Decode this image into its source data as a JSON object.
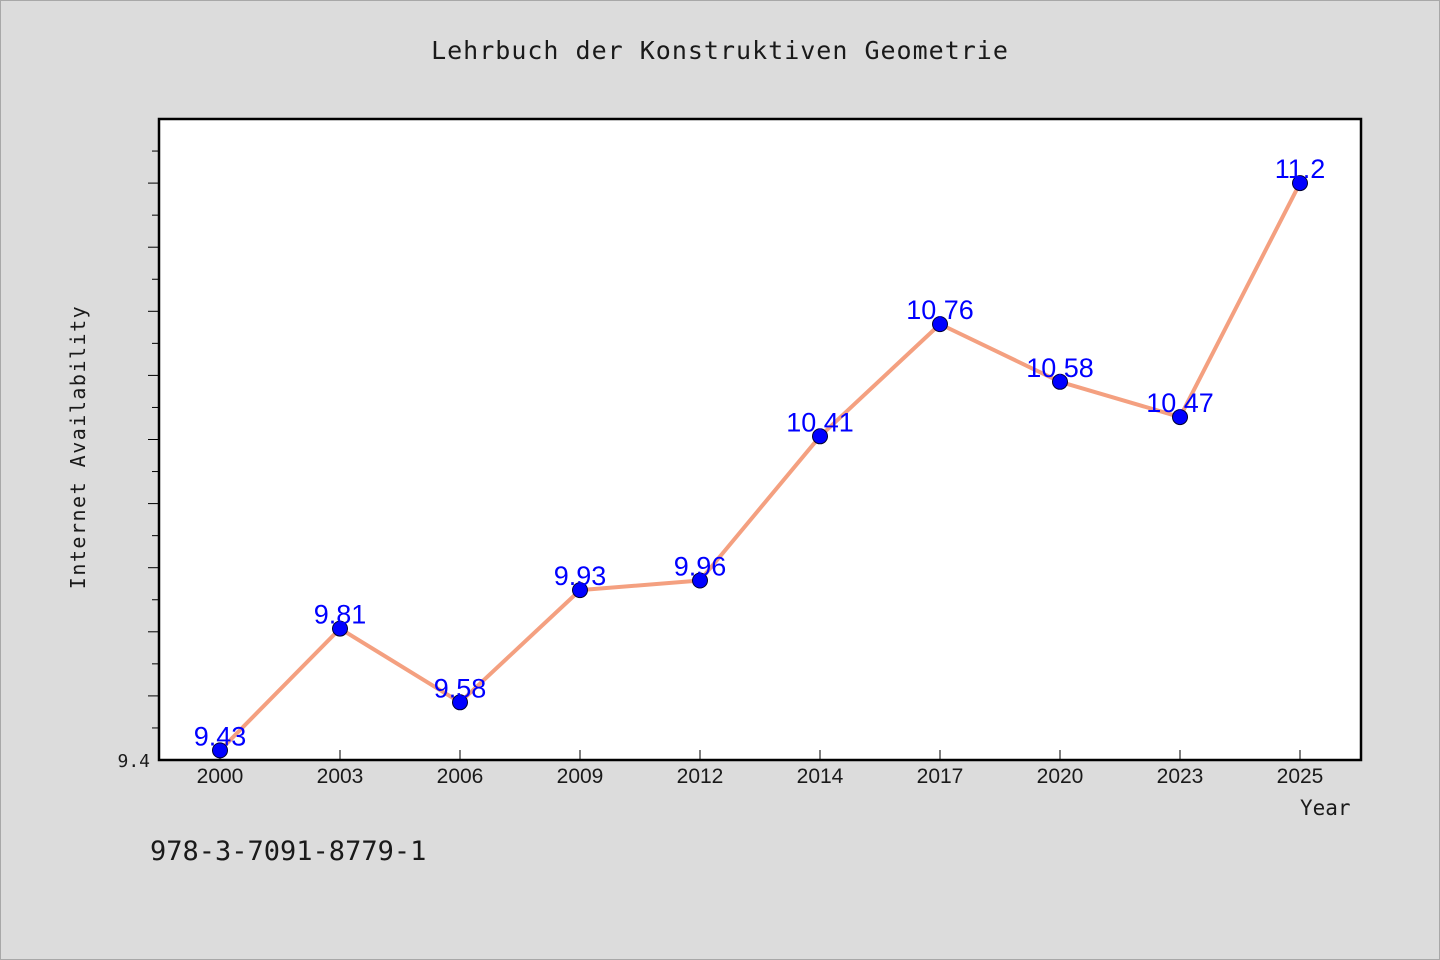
{
  "title": "Lehrbuch der Konstruktiven Geometrie",
  "footer_text": "978-3-7091-8779-1",
  "colors": {
    "background": "#dcdcdc",
    "plot_background": "#ffffff",
    "line": "#f4a080",
    "marker": "#0000ff",
    "data_label": "#0000ff"
  },
  "chart_data": {
    "type": "line",
    "xlabel": "Year",
    "ylabel": "Internet Availability",
    "categories": [
      "2000",
      "2003",
      "2006",
      "2009",
      "2012",
      "2014",
      "2017",
      "2020",
      "2023",
      "2025"
    ],
    "series": [
      {
        "values": [
          9.43,
          9.81,
          9.58,
          9.93,
          9.96,
          10.41,
          10.76,
          10.58,
          10.47,
          11.2
        ]
      }
    ],
    "data_labels": [
      "9.43",
      "9.81",
      "9.58",
      "9.93",
      "9.96",
      "10.41",
      "10.76",
      "10.58",
      "10.47",
      "11.2"
    ],
    "ylim": [
      9.4,
      11.4
    ],
    "y_tick_labels": [
      "9.4"
    ],
    "grid": false,
    "legend": "none"
  }
}
